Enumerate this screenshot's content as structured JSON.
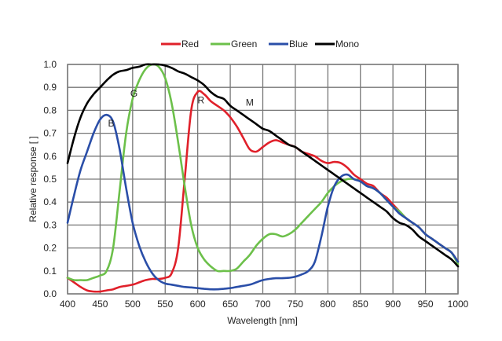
{
  "chart_data": {
    "type": "line",
    "title": "",
    "xlabel": "Wavelength [nm]",
    "ylabel": "Relative response [ ]",
    "xlim": [
      400,
      1000
    ],
    "ylim": [
      0.0,
      1.0
    ],
    "grid": true,
    "legend_position": "top-center",
    "x_ticks": [
      "400",
      "450",
      "500",
      "550",
      "600",
      "650",
      "700",
      "750",
      "800",
      "850",
      "900",
      "950",
      "1000"
    ],
    "y_ticks": [
      "0.0",
      "0.1",
      "0.2",
      "0.3",
      "0.4",
      "0.5",
      "0.6",
      "0.7",
      "0.8",
      "0.9",
      "1.0"
    ],
    "x": [
      400,
      410,
      420,
      430,
      440,
      450,
      460,
      470,
      480,
      490,
      500,
      510,
      520,
      530,
      540,
      550,
      560,
      570,
      580,
      590,
      600,
      610,
      620,
      630,
      640,
      650,
      660,
      670,
      680,
      690,
      700,
      710,
      720,
      730,
      740,
      750,
      760,
      770,
      780,
      790,
      800,
      810,
      820,
      830,
      840,
      850,
      860,
      870,
      880,
      890,
      900,
      910,
      920,
      930,
      940,
      950,
      960,
      970,
      980,
      990,
      1000
    ],
    "series": [
      {
        "name": "Red",
        "color": "#e0202a",
        "label": "R",
        "values": [
          0.07,
          0.05,
          0.03,
          0.015,
          0.01,
          0.01,
          0.015,
          0.02,
          0.03,
          0.035,
          0.04,
          0.05,
          0.06,
          0.065,
          0.065,
          0.07,
          0.09,
          0.2,
          0.5,
          0.8,
          0.88,
          0.87,
          0.84,
          0.82,
          0.8,
          0.77,
          0.73,
          0.68,
          0.63,
          0.62,
          0.64,
          0.66,
          0.67,
          0.66,
          0.65,
          0.64,
          0.62,
          0.61,
          0.6,
          0.58,
          0.57,
          0.575,
          0.57,
          0.55,
          0.52,
          0.5,
          0.48,
          0.47,
          0.44,
          0.42,
          0.39,
          0.36,
          0.33,
          0.31,
          0.29,
          0.26,
          0.24,
          0.22,
          0.2,
          0.18,
          0.14
        ]
      },
      {
        "name": "Green",
        "color": "#6cc04a",
        "label": "G",
        "values": [
          0.07,
          0.06,
          0.06,
          0.06,
          0.07,
          0.08,
          0.1,
          0.2,
          0.45,
          0.7,
          0.85,
          0.93,
          0.98,
          1.0,
          0.99,
          0.94,
          0.83,
          0.66,
          0.47,
          0.3,
          0.2,
          0.15,
          0.12,
          0.1,
          0.1,
          0.1,
          0.11,
          0.14,
          0.17,
          0.21,
          0.24,
          0.26,
          0.26,
          0.25,
          0.26,
          0.28,
          0.31,
          0.34,
          0.37,
          0.4,
          0.44,
          0.47,
          0.49,
          0.5,
          0.5,
          0.49,
          0.47,
          0.46,
          0.44,
          0.41,
          0.38,
          0.36,
          0.33,
          0.31,
          0.29,
          0.26,
          0.24,
          0.22,
          0.2,
          0.18,
          0.13
        ]
      },
      {
        "name": "Blue",
        "color": "#2a4ea8",
        "label": "B",
        "values": [
          0.31,
          0.43,
          0.54,
          0.62,
          0.7,
          0.76,
          0.78,
          0.75,
          0.63,
          0.46,
          0.31,
          0.21,
          0.14,
          0.09,
          0.06,
          0.045,
          0.04,
          0.035,
          0.03,
          0.028,
          0.025,
          0.022,
          0.02,
          0.02,
          0.022,
          0.025,
          0.03,
          0.035,
          0.04,
          0.05,
          0.06,
          0.065,
          0.068,
          0.068,
          0.07,
          0.075,
          0.085,
          0.1,
          0.14,
          0.25,
          0.38,
          0.47,
          0.51,
          0.52,
          0.5,
          0.49,
          0.47,
          0.46,
          0.44,
          0.41,
          0.38,
          0.35,
          0.33,
          0.31,
          0.29,
          0.26,
          0.24,
          0.22,
          0.2,
          0.18,
          0.14
        ]
      },
      {
        "name": "Mono",
        "color": "#000000",
        "label": "M",
        "values": [
          0.57,
          0.68,
          0.77,
          0.83,
          0.87,
          0.9,
          0.93,
          0.955,
          0.97,
          0.975,
          0.985,
          0.99,
          1.0,
          1.0,
          1.0,
          0.995,
          0.985,
          0.97,
          0.96,
          0.945,
          0.93,
          0.91,
          0.88,
          0.86,
          0.85,
          0.82,
          0.8,
          0.78,
          0.76,
          0.74,
          0.72,
          0.71,
          0.69,
          0.67,
          0.65,
          0.64,
          0.62,
          0.6,
          0.58,
          0.56,
          0.54,
          0.52,
          0.5,
          0.48,
          0.46,
          0.44,
          0.42,
          0.4,
          0.38,
          0.36,
          0.33,
          0.31,
          0.3,
          0.28,
          0.25,
          0.23,
          0.21,
          0.19,
          0.17,
          0.15,
          0.12
        ]
      }
    ],
    "annotations": [
      {
        "text": "B",
        "x": 467,
        "y": 0.73
      },
      {
        "text": "G",
        "x": 502,
        "y": 0.86
      },
      {
        "text": "R",
        "x": 605,
        "y": 0.83
      },
      {
        "text": "M",
        "x": 680,
        "y": 0.82
      }
    ]
  }
}
